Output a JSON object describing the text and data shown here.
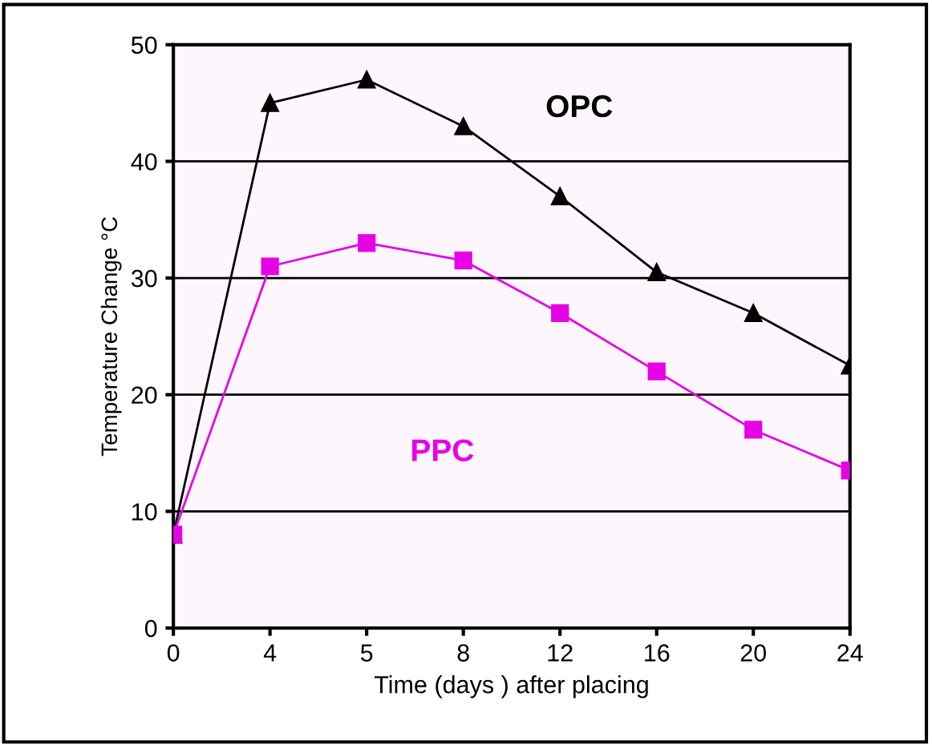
{
  "chart_data": {
    "type": "line",
    "xlabel": "Time (days ) after placing",
    "ylabel": "Temperature Change °C",
    "categories": [
      "0",
      "4",
      "5",
      "8",
      "12",
      "16",
      "20",
      "24"
    ],
    "series": [
      {
        "name": "OPC",
        "color": "#000000",
        "marker": "triangle",
        "values": [
          8,
          45,
          47,
          43,
          37,
          30.5,
          27,
          22.5
        ]
      },
      {
        "name": "PPC",
        "color": "#e600e6",
        "marker": "square",
        "values": [
          8,
          31,
          33,
          31.5,
          27,
          22,
          17,
          13.5
        ]
      }
    ],
    "ylim": [
      0,
      50
    ],
    "yticks": [
      0,
      10,
      20,
      30,
      40,
      50
    ],
    "grid": "y",
    "legend": false,
    "line_style": "solid"
  }
}
